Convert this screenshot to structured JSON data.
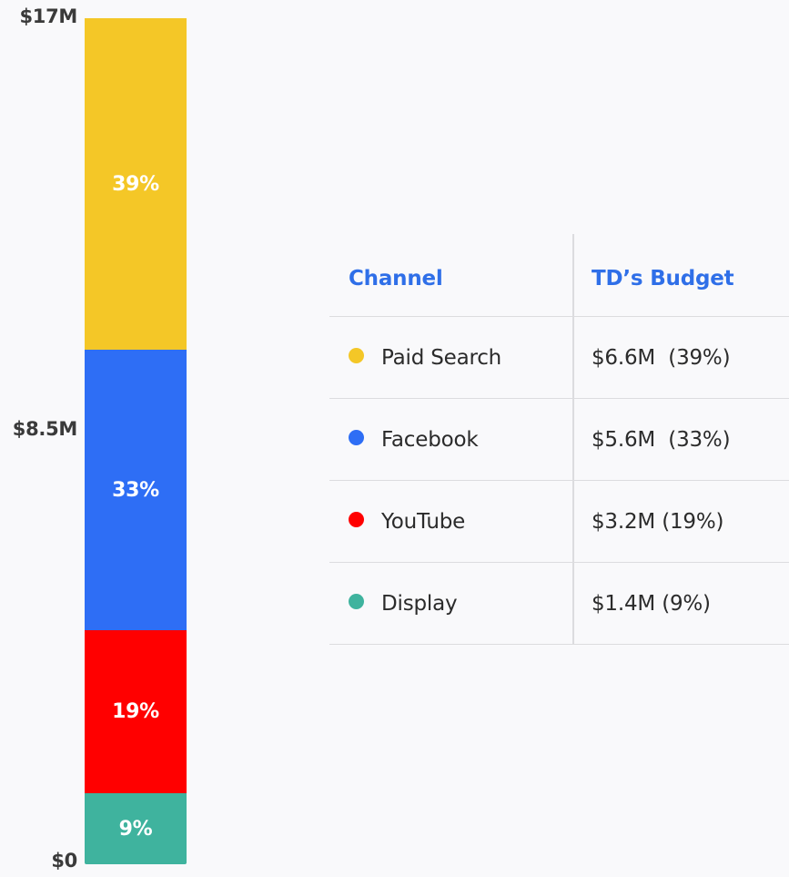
{
  "chart_data": {
    "type": "bar",
    "stacked": true,
    "axis": {
      "ticks": [
        "$17M",
        "$8.5M",
        "$0"
      ],
      "ylim": [
        0,
        17
      ]
    },
    "series": [
      {
        "name": "Paid Search",
        "value": 6.6,
        "label": "39%",
        "color": "#f4c727"
      },
      {
        "name": "Facebook",
        "value": 5.6,
        "label": "33%",
        "color": "#2e6ef5"
      },
      {
        "name": "YouTube",
        "value": 3.2,
        "label": "19%",
        "color": "#ff0000"
      },
      {
        "name": "Display",
        "value": 1.4,
        "label": "9%",
        "color": "#3fb39e"
      }
    ]
  },
  "table": {
    "headers": {
      "channel": "Channel",
      "budget": "TD’s Budget"
    },
    "header_color": "#2f6fe8",
    "rows": [
      {
        "channel": "Paid Search",
        "budget": "$6.6M",
        "pct": "(39%)",
        "sep": "  ",
        "dot_color": "#f4c727"
      },
      {
        "channel": "Facebook",
        "budget": "$5.6M",
        "pct": "(33%)",
        "sep": "  ",
        "dot_color": "#2e6ef5"
      },
      {
        "channel": "YouTube",
        "budget": "$3.2M",
        "pct": "(19%)",
        "sep": " ",
        "dot_color": "#ff0000"
      },
      {
        "channel": "Display",
        "budget": "$1.4M",
        "pct": "(9%)",
        "sep": " ",
        "dot_color": "#3fb39e"
      }
    ]
  }
}
